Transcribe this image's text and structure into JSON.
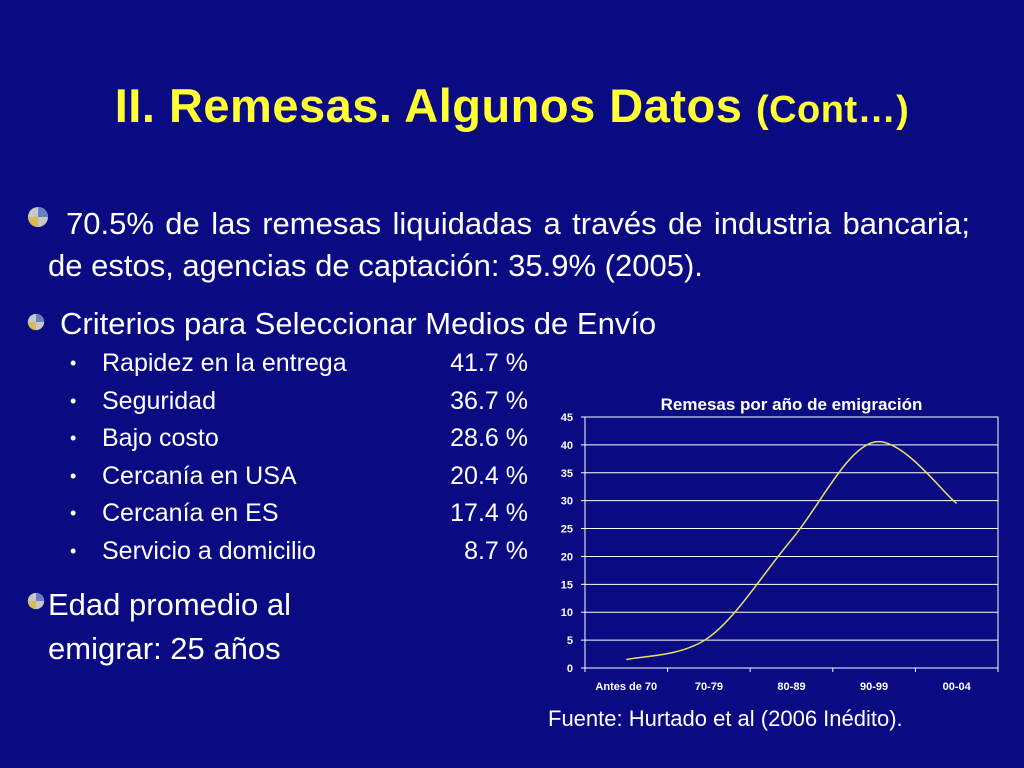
{
  "slide": {
    "title_main": "II. Remesas. Algunos Datos",
    "title_suffix": "(Cont…)",
    "bullet1": "70.5% de las remesas liquidadas a través de industria bancaria; de estos, agencias de captación: 35.9% (2005).",
    "bullet2": "Criterios para Seleccionar Medios de Envío",
    "criteria": [
      {
        "label": "Rapidez en la entrega",
        "value": "41.7 %"
      },
      {
        "label": "Seguridad",
        "value": "36.7 %"
      },
      {
        "label": "Bajo costo",
        "value": "28.6 %"
      },
      {
        "label": "Cercanía en USA",
        "value": "20.4 %"
      },
      {
        "label": "Cercanía en ES",
        "value": "17.4 %"
      },
      {
        "label": "Servicio a domicilio",
        "value": "8.7 %"
      }
    ],
    "bullet3_line1": "Edad promedio al",
    "bullet3_line2": "emigrar: 25 años",
    "source": "Fuente: Hurtado et al (2006 Inédito)."
  },
  "colors": {
    "background": "#0a0a82",
    "title": "#ffff33",
    "text": "#ffffff",
    "line": "#e8e070"
  },
  "chart_data": {
    "type": "line",
    "title": "Remesas por año de emigración",
    "categories": [
      "Antes de 70",
      "70-79",
      "80-89",
      "90-99",
      "00-04"
    ],
    "values": [
      1.5,
      5.5,
      23,
      40.5,
      29.5
    ],
    "ylim": [
      0,
      45
    ],
    "yticks": [
      "0",
      "5",
      "10",
      "15",
      "20",
      "25",
      "30",
      "35",
      "40",
      "45"
    ],
    "xlabel": "",
    "ylabel": "",
    "grid": true,
    "legend": "none",
    "smooth": true
  }
}
